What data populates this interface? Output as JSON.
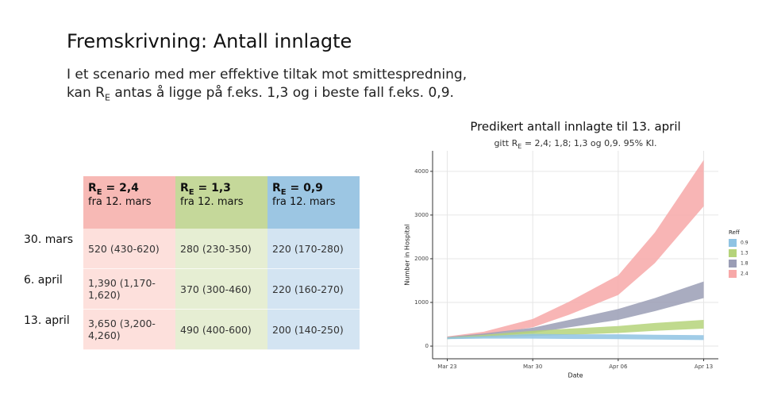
{
  "header": {
    "title": "Fremskrivning: Antall innlagte",
    "line1": "I et scenario med mer effektive tiltak mot smittespredning,",
    "line2": [
      "kan R",
      "E",
      " antas å ligge på f.eks. 1,3 og i beste fall f.eks. 0,9."
    ]
  },
  "table": {
    "columns": [
      {
        "r": "R",
        "sub": "E",
        "value": " = 2,4",
        "note": "fra 12. mars",
        "color": "#f7b9b5",
        "body": "#fde0dc"
      },
      {
        "r": "R",
        "sub": "E",
        "value": " = 1,3",
        "note": "fra 12. mars",
        "color": "#c5d89a",
        "body": "#e6eed3"
      },
      {
        "r": "R",
        "sub": "E",
        "value": " = 0,9",
        "note": "fra 12. mars",
        "color": "#9cc6e3",
        "body": "#d3e4f2"
      }
    ],
    "rows": [
      [
        "30. mars",
        "520 (430-620)",
        "280 (230-350)",
        "220 (170-280)"
      ],
      [
        "6. april",
        "1,390 (1,170-1,620)",
        "370 (300-460)",
        "220 (160-270)"
      ],
      [
        "13. april",
        "3,650 (3,200-4,260)",
        "490 (400-600)",
        "200 (140-250)"
      ]
    ]
  },
  "chart_data": {
    "type": "ribbon",
    "title": "Predikert antall innlagte til 13. april",
    "subtitle": [
      "gitt R",
      "E",
      " = 2,4; 1,8; 1,3 og 0,9. 95% KI."
    ],
    "x_label": "Date",
    "y_label": "Number in Hospital",
    "legend_title": "Reff",
    "x": [
      "Mar 23",
      "Mar 26",
      "Mar 30",
      "Apr 02",
      "Apr 06",
      "Apr 09",
      "Apr 13"
    ],
    "xticks": [
      "Mar 23",
      "Mar 30",
      "Apr 06",
      "Apr 13"
    ],
    "ylim": [
      -290,
      4470
    ],
    "yticks": [
      0,
      1000,
      2000,
      3000,
      4000
    ],
    "grid": true,
    "series": [
      {
        "name": "0.9",
        "color": "#8fc3e3",
        "lower": [
          160,
          170,
          170,
          165,
          160,
          150,
          140
        ],
        "upper": [
          200,
          230,
          280,
          270,
          270,
          260,
          250
        ]
      },
      {
        "name": "1.3",
        "color": "#b5d37a",
        "lower": [
          160,
          200,
          230,
          260,
          300,
          350,
          400
        ],
        "upper": [
          200,
          260,
          350,
          400,
          460,
          530,
          600
        ]
      },
      {
        "name": "1.8",
        "color": "#9a9db5",
        "lower": [
          160,
          220,
          300,
          430,
          600,
          800,
          1100
        ],
        "upper": [
          210,
          290,
          420,
          600,
          850,
          1100,
          1480
        ]
      },
      {
        "name": "2.4",
        "color": "#f7a8a8",
        "lower": [
          170,
          260,
          430,
          720,
          1170,
          1900,
          3200
        ],
        "upper": [
          220,
          330,
          620,
          1020,
          1620,
          2600,
          4260
        ]
      }
    ]
  }
}
